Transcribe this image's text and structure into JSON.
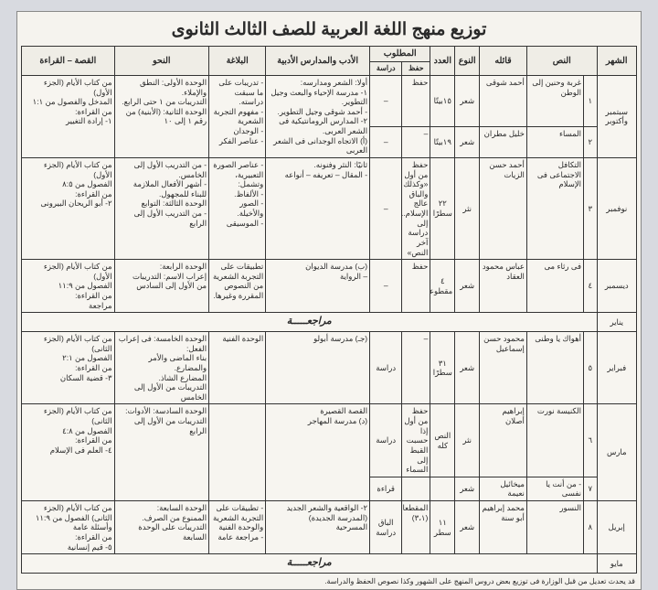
{
  "title": "توزيع منهج اللغة العربية للصف الثالث الثانوى",
  "headers": {
    "month": "الشهر",
    "text": "النص",
    "author": "قائله",
    "type": "النوع",
    "count": "العدد",
    "required": "المطلوب",
    "memorize": "حفظ",
    "study": "دراسة",
    "literature": "الأدب والمدارس الأدبية",
    "rhetoric": "البلاغة",
    "grammar": "النحو",
    "story": "القصة – القراءة"
  },
  "cols": {
    "month": 42,
    "idx": 14,
    "text": 60,
    "author": 50,
    "type": 26,
    "count": 26,
    "memorize": 30,
    "study": 34,
    "literature": 110,
    "rhetoric": 60,
    "grammar": 100,
    "story": 98
  },
  "rows": [
    {
      "month": "سبتمبر وأكتوبر",
      "texts": [
        {
          "i": "١",
          "t": "غربة وحنين إلى الوطن",
          "a": "أحمد شوقى",
          "ty": "شعر",
          "c": "١٥بيتًا",
          "m": "حفظ",
          "s": "–"
        },
        {
          "i": "٢",
          "t": "المساء",
          "a": "خليل مطران",
          "ty": "شعر",
          "c": "١٩بيتًا",
          "m": "–",
          "s": "–"
        }
      ],
      "lit": "أولا: الشعر ومدارسه:\n١- مدرسة الإحياء والبعث وجيل التطوير.\n- أحمد شوقى وجيل التطوير.\n٢- المدارس الرومانتيكية فى الشعر العربى.\n(أ) الاتجاه الوجدانى فى الشعر العربى",
      "rhet": "- تدريبات على ما سبقت دراسته.\n- مفهوم التجربة الشعرية\n- الوجدان\n- عناصر الفكر",
      "gram": "الوحدة الأولى: النطق والإملاء.\nالتدريبات من ١ حتى الرابع.\nالوحدة الثانية: (الأبنية) من رقم ١ إلى ١٠",
      "story": "من كتاب الأيام (الجزء الأول)\nالمدخل والفصول من ١:١\nمن القراءة:\n١- إرادة التغيير"
    },
    {
      "month": "نوفمبر",
      "texts": [
        {
          "i": "٣",
          "t": "التكافل الاجتماعى فى الإسلام",
          "a": "أحمد حسن الزيات",
          "ty": "نثر",
          "c": "٢٢ سطرًا",
          "m": "حفظ من أول «وكذلك والباق عالج الإسلام.. إلى دراسة آخر النص»",
          "s": "–"
        }
      ],
      "lit": "ثانيًا: النثر وفنونه.\n- المقال – تعريفه – أنواعه",
      "rhet": "- عناصر الصورة التعبيرية، وتشمل:\n- الألفاظ.\n- الصور والأخيلة.\n- الموسيقى",
      "gram": "- من التدريب الأول إلى الخامس.\n- أشهر الأفعال الملازمة للبناء للمجهول.\nالوحدة الثالثة: التوابع\n- من التدريب الأول إلى الرابع",
      "story": "من كتاب الأيام (الجزء الأول)\nالفصول من ٨:٥\nمن القراءة:\n٢- أبو الريحان البيرونى"
    },
    {
      "month": "ديسمبر",
      "texts": [
        {
          "i": "٤",
          "t": "فى رثاء مى",
          "a": "عباس محمود العقاد",
          "ty": "شعر",
          "c": "٤ مقطوعات",
          "m": "حفظ",
          "s": "–"
        }
      ],
      "lit": "(ب) مدرسة الديوان\n– الرواية",
      "rhet": "تطبيقات على التجربة الشعرية من النصوص المقررة وغيرها.",
      "gram": "الوحدة الرابعة:\nإعراب الاسم: التدريبات\nمن الأول إلى السادس",
      "story": "من كتاب الأيام (الجزء الأول)\nالفصول من ١١:٩\nمن القراءة:\nمراجعة"
    }
  ],
  "review1": "مراجعـــــة",
  "january": "يناير",
  "rows2": [
    {
      "month": "فبراير",
      "texts": [
        {
          "i": "٥",
          "t": "أهواك يا وطنى",
          "a": "محمود حسن إسماعيل",
          "ty": "شعر",
          "c": "٣١ سطرًا",
          "m": "–",
          "s": "دراسة"
        }
      ],
      "lit": "(جـ) مدرسة أبولو",
      "rhet": "الوحدة الفنية",
      "gram": "الوحدة الخامسة: فى إعراب الفعل:\nبناء الماضى والأمر والمضارع.\nالمضارع الشاذ.\nالتدريبات من الأول إلى الخامس",
      "story": "من كتاب الأيام (الجزء الثانى)\nالفصول من ٢:١\nمن القراءة:\n٣- قضية السكان"
    },
    {
      "month": "مارس",
      "texts": [
        {
          "i": "٦",
          "t": "الكنيسة نورت",
          "a": "إبراهيم أصلان",
          "ty": "نثر",
          "c": "النص كله",
          "m": "حفظ من أول إذا حسبت القبط إلى السماء",
          "s": "دراسة"
        },
        {
          "i": "٧",
          "t": "- من أنت يا نفسى",
          "a": "ميخائيل نعيمة",
          "ty": "شعر",
          "c": "",
          "m": "",
          "s": "قراءة"
        }
      ],
      "lit": "القصة القصيرة\n(د) مدرسة المهاجر",
      "rhet": "",
      "gram": "الوحدة السادسة: الأدوات:\nالتدريبات من الأول إلى الرابع",
      "story": "من كتاب الأيام (الجزء الثانى)\nالفصول من ٤:٨\nمن القراءة:\n٤- العلم فى الإسلام"
    },
    {
      "month": "إبريل",
      "texts": [
        {
          "i": "٨",
          "t": "النسور",
          "a": "محمد إبراهيم أبو سنة",
          "ty": "شعر",
          "c": "١١ سطر",
          "m": "المقطعان (٣،١)",
          "s": "الباق دراسة"
        }
      ],
      "lit": "٢- الواقعية والشعر الجديد\n(المدرسة الجديدة)\nالمسرحية",
      "rhet": "- تطبيقات على التجربة الشعرية والوحدة الفنية\n- مراجعة عامة",
      "gram": "الوحدة السابعة:\nالممنوع من الصرف.\nالتدريبات على الوحدة السابعة",
      "story": "من كتاب الأيام (الجزء الثانى) الفصول من ١١:٩\nوأسئلة عامة\nمن القراءة:\n٥- قيم إنسانية"
    }
  ],
  "review2": "مراجعـــــة",
  "may": "مايو",
  "footer": "قد يحدث تعديل من قبل الوزارة فى توزيع بعض دروس المنهج على الشهور وكذا نصوص الحفظ والدراسة."
}
